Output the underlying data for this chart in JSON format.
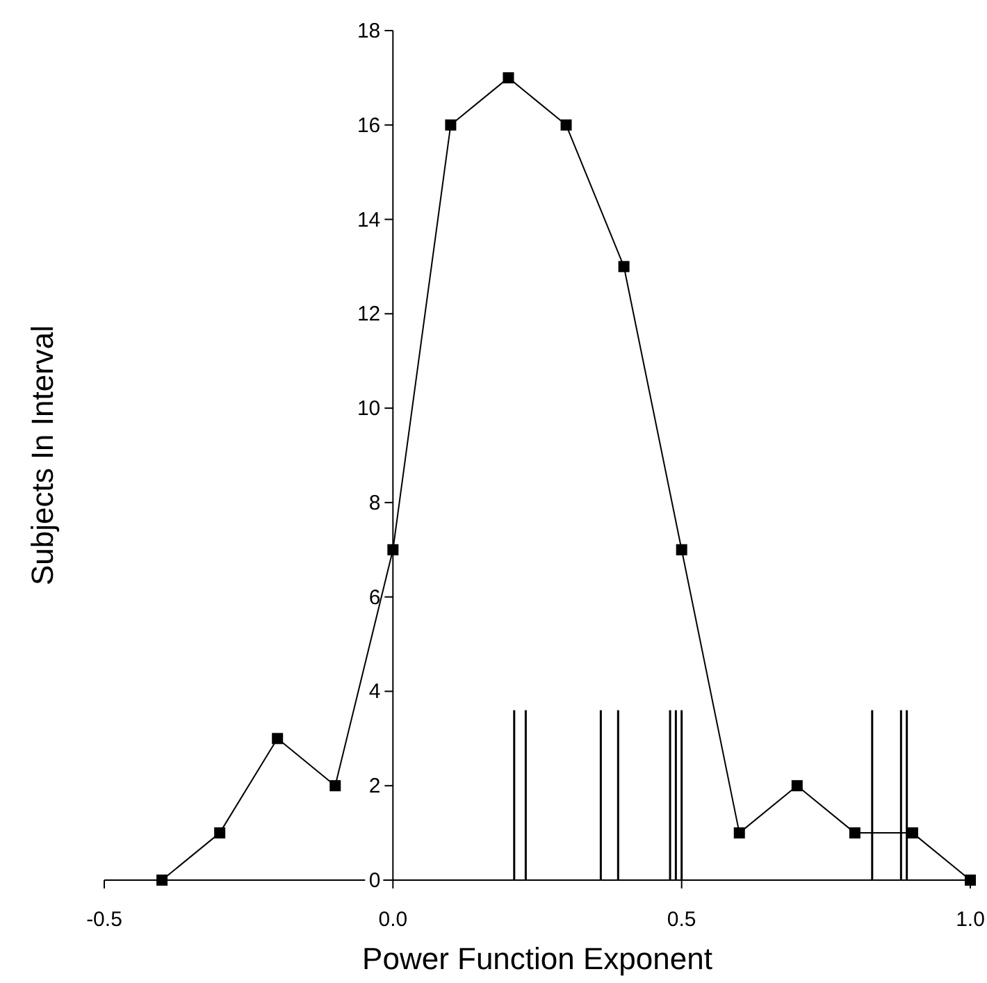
{
  "chart_data": {
    "type": "line",
    "xlabel": "Power Function Exponent",
    "ylabel": "Subjects In Interval",
    "x": [
      -0.4,
      -0.3,
      -0.2,
      -0.1,
      0.0,
      0.1,
      0.2,
      0.3,
      0.4,
      0.5,
      0.6,
      0.7,
      0.8,
      0.9,
      1.0
    ],
    "series": [
      {
        "color": "#000000",
        "values": [
          0,
          1,
          3,
          2,
          7,
          16,
          17,
          16,
          13,
          7,
          1,
          2,
          1,
          1,
          0
        ]
      }
    ],
    "xlim": [
      -0.5,
      1.0
    ],
    "xticks": [
      {
        "value": -0.5,
        "label": "-0.5"
      },
      {
        "value": 0,
        "label": "0.0"
      },
      {
        "value": 0.5,
        "label": "0.5"
      },
      {
        "value": 1,
        "label": "1.0"
      }
    ],
    "ylim": [
      0,
      18
    ],
    "yticks": [
      0,
      2,
      4,
      6,
      8,
      10,
      12,
      14,
      16,
      18
    ],
    "marker": "square",
    "line_style": "solid",
    "grid": false,
    "ref_lines": [
      {
        "axis": "x",
        "value": 0.21,
        "label": null
      },
      {
        "axis": "x",
        "value": 0.23,
        "label": null
      },
      {
        "axis": "x",
        "value": 0.36,
        "label": null
      },
      {
        "axis": "x",
        "value": 0.39,
        "label": null
      },
      {
        "axis": "x",
        "value": 0.48,
        "label": null
      },
      {
        "axis": "x",
        "value": 0.49,
        "label": null
      },
      {
        "axis": "x",
        "value": 0.5,
        "label": null
      },
      {
        "axis": "x",
        "value": 0.83,
        "label": null
      },
      {
        "axis": "x",
        "value": 0.88,
        "label": null
      },
      {
        "axis": "x",
        "value": 0.89,
        "label": null
      }
    ]
  }
}
